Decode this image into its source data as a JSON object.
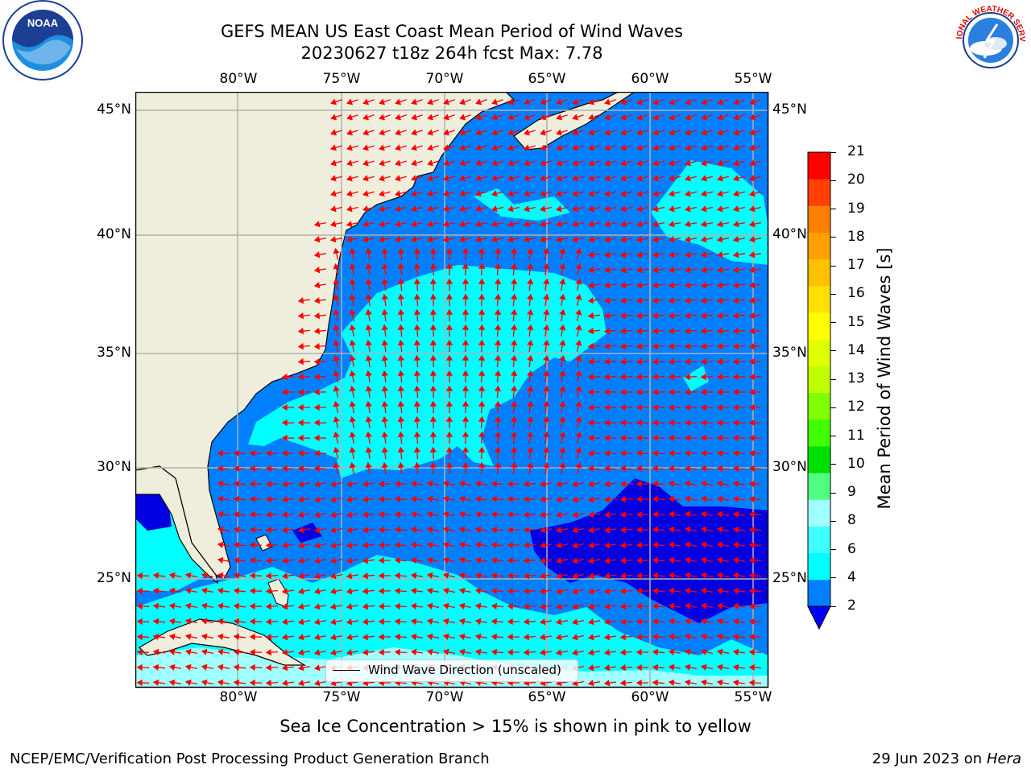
{
  "header": {
    "title_line1": "GEFS MEAN US East Coast Mean Period of Wind Waves",
    "title_line2": "20230627 t18z 264h fcst   Max: 7.78"
  },
  "logos": {
    "left": {
      "icon": "noaa-logo-icon",
      "text": "NOAA"
    },
    "right": {
      "icon": "nws-logo-icon",
      "text": "NATIONAL WEATHER SERVICE"
    }
  },
  "map": {
    "lon_labels": [
      "80°W",
      "75°W",
      "70°W",
      "65°W",
      "60°W",
      "55°W"
    ],
    "lat_labels": [
      "45°N",
      "40°N",
      "35°N",
      "30°N",
      "25°N"
    ],
    "legend_label": "Wind Wave Direction (unscaled)",
    "colors": {
      "land": "#efeedc",
      "ocean_2_4": "#0080ff",
      "ocean_4_6": "#00ffff",
      "ocean_below_2": "#0000e0",
      "arrows": "#ff0000",
      "grid": "#b0b0b0"
    }
  },
  "colorbar": {
    "label": "Mean Period of Wind Waves [s]",
    "ticks": [
      "2",
      "4",
      "6",
      "8",
      "9",
      "10",
      "11",
      "12",
      "13",
      "14",
      "15",
      "16",
      "17",
      "18",
      "19",
      "20",
      "21"
    ],
    "colors": [
      "#0080ff",
      "#00ffff",
      "#40ffff",
      "#a0ffff",
      "#50ff80",
      "#00e000",
      "#40ff00",
      "#80ff00",
      "#c0ff00",
      "#e0ff00",
      "#ffff00",
      "#ffe000",
      "#ffc000",
      "#ffa000",
      "#ff8000",
      "#ff4000",
      "#ff0000"
    ],
    "under_color": "#0000ff"
  },
  "footer": {
    "note": "Sea Ice Concentration > 15% is shown in pink to yellow",
    "left": "NCEP/EMC/Verification Post Processing Product Generation Branch",
    "right_date": "29 Jun 2023 on",
    "right_machine": "Hera"
  }
}
